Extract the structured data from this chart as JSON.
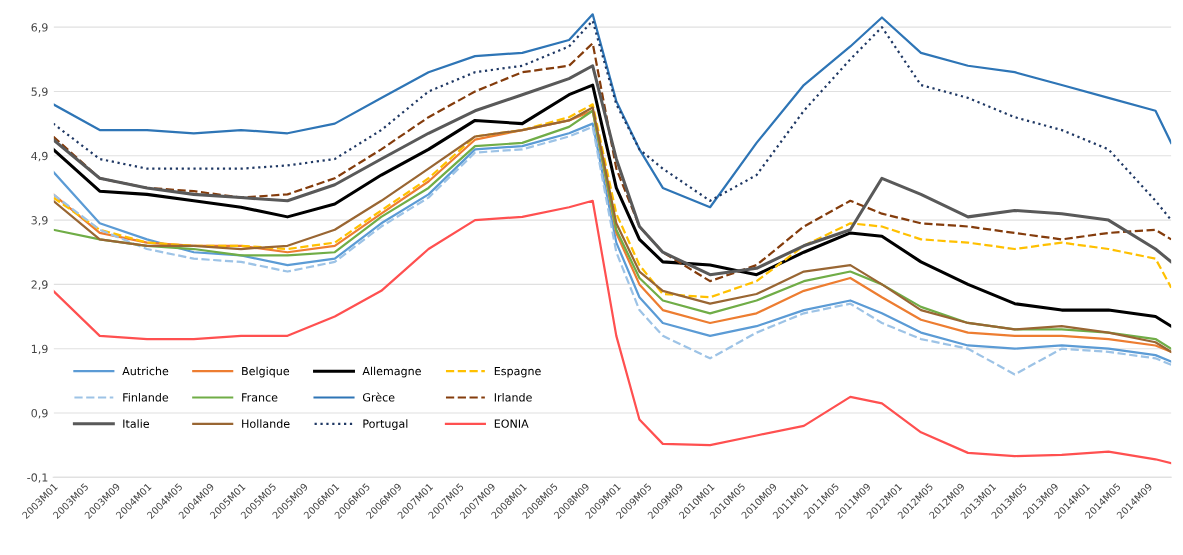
{
  "chart_data": {
    "type": "line",
    "x": [
      "2003-01",
      "2003-07",
      "2004-01",
      "2004-07",
      "2005-01",
      "2005-07",
      "2006-01",
      "2006-07",
      "2007-01",
      "2007-07",
      "2008-01",
      "2008-07",
      "2008-10",
      "2009-01",
      "2009-04",
      "2009-07",
      "2010-01",
      "2010-07",
      "2011-01",
      "2011-07",
      "2011-11",
      "2012-04",
      "2012-10",
      "2013-04",
      "2013-10",
      "2014-04",
      "2014-10",
      "2014-12"
    ],
    "series": [
      {
        "name": "Autriche",
        "color": "#5b9bd5",
        "line_style": "solid",
        "values": [
          4.65,
          3.85,
          3.6,
          3.4,
          3.35,
          3.2,
          3.3,
          3.85,
          4.3,
          5.0,
          5.05,
          5.25,
          5.4,
          3.55,
          2.7,
          2.3,
          2.1,
          2.25,
          2.5,
          2.65,
          2.45,
          2.15,
          1.95,
          1.9,
          1.95,
          1.9,
          1.8,
          1.7
        ]
      },
      {
        "name": "Belgique",
        "color": "#ed7d31",
        "line_style": "solid",
        "values": [
          4.3,
          3.7,
          3.55,
          3.5,
          3.5,
          3.4,
          3.5,
          4.0,
          4.5,
          5.15,
          5.3,
          5.45,
          5.6,
          3.7,
          2.9,
          2.5,
          2.3,
          2.45,
          2.8,
          3.0,
          2.7,
          2.35,
          2.15,
          2.1,
          2.1,
          2.05,
          1.95,
          1.85
        ]
      },
      {
        "name": "Allemagne",
        "color": "#000000",
        "line_style": "solid",
        "values": [
          5.0,
          4.35,
          4.3,
          4.2,
          4.1,
          3.95,
          4.15,
          4.6,
          5.0,
          5.45,
          5.4,
          5.85,
          6.0,
          4.4,
          3.6,
          3.25,
          3.2,
          3.05,
          3.4,
          3.7,
          3.65,
          3.25,
          2.9,
          2.6,
          2.5,
          2.5,
          2.4,
          2.25
        ]
      },
      {
        "name": "Espagne",
        "color": "#ffc000",
        "line_style": "dashed",
        "values": [
          4.25,
          3.75,
          3.55,
          3.5,
          3.5,
          3.45,
          3.55,
          4.05,
          4.55,
          5.2,
          5.3,
          5.5,
          5.7,
          4.0,
          3.2,
          2.75,
          2.7,
          2.95,
          3.5,
          3.85,
          3.8,
          3.6,
          3.55,
          3.45,
          3.55,
          3.45,
          3.3,
          2.85
        ]
      },
      {
        "name": "Finlande",
        "color": "#9dc3e6",
        "line_style": "dashed",
        "values": [
          4.3,
          3.75,
          3.45,
          3.3,
          3.25,
          3.1,
          3.25,
          3.8,
          4.25,
          4.95,
          5.0,
          5.2,
          5.35,
          3.4,
          2.5,
          2.1,
          1.75,
          2.15,
          2.45,
          2.6,
          2.3,
          2.05,
          1.9,
          1.5,
          1.9,
          1.85,
          1.75,
          1.65
        ]
      },
      {
        "name": "France",
        "color": "#70ad47",
        "line_style": "solid",
        "values": [
          3.75,
          3.6,
          3.5,
          3.45,
          3.35,
          3.35,
          3.4,
          3.95,
          4.4,
          5.05,
          5.1,
          5.35,
          5.6,
          3.75,
          3.0,
          2.65,
          2.45,
          2.65,
          2.95,
          3.1,
          2.9,
          2.55,
          2.3,
          2.2,
          2.2,
          2.15,
          2.05,
          1.9
        ]
      },
      {
        "name": "Grèce",
        "color": "#2e75b6",
        "line_style": "solid",
        "values": [
          5.7,
          5.3,
          5.3,
          5.25,
          5.3,
          5.25,
          5.4,
          5.8,
          6.2,
          6.45,
          6.5,
          6.7,
          7.1,
          5.75,
          5.0,
          4.4,
          4.1,
          5.1,
          6.0,
          6.6,
          7.05,
          6.5,
          6.3,
          6.2,
          6.0,
          5.8,
          5.6,
          5.1
        ]
      },
      {
        "name": "Irlande",
        "color": "#843c0c",
        "line_style": "dashed",
        "values": [
          5.2,
          4.55,
          4.4,
          4.35,
          4.25,
          4.3,
          4.55,
          5.0,
          5.5,
          5.9,
          6.2,
          6.3,
          6.65,
          4.7,
          3.8,
          3.4,
          2.95,
          3.2,
          3.8,
          4.2,
          4.0,
          3.85,
          3.8,
          3.7,
          3.6,
          3.7,
          3.75,
          3.6
        ]
      },
      {
        "name": "Italie",
        "color": "#595959",
        "line_style": "solid",
        "values": [
          5.15,
          4.55,
          4.4,
          4.3,
          4.25,
          4.2,
          4.45,
          4.85,
          5.25,
          5.6,
          5.85,
          6.1,
          6.3,
          4.85,
          3.8,
          3.4,
          3.05,
          3.15,
          3.5,
          3.75,
          4.55,
          4.3,
          3.95,
          4.05,
          4.0,
          3.9,
          3.45,
          3.25
        ]
      },
      {
        "name": "Hollande",
        "color": "#996633",
        "line_style": "solid",
        "values": [
          4.2,
          3.6,
          3.5,
          3.5,
          3.45,
          3.5,
          3.75,
          4.2,
          4.7,
          5.2,
          5.3,
          5.45,
          5.65,
          3.85,
          3.1,
          2.8,
          2.6,
          2.75,
          3.1,
          3.2,
          2.9,
          2.5,
          2.3,
          2.2,
          2.25,
          2.15,
          2.0,
          1.85
        ]
      },
      {
        "name": "Portugal",
        "color": "#1f3864",
        "line_style": "dotted",
        "values": [
          5.4,
          4.85,
          4.7,
          4.7,
          4.7,
          4.75,
          4.85,
          5.3,
          5.9,
          6.2,
          6.3,
          6.6,
          7.0,
          5.7,
          5.0,
          4.7,
          4.2,
          4.6,
          5.6,
          6.4,
          6.9,
          6.0,
          5.8,
          5.5,
          5.3,
          5.0,
          4.2,
          3.9
        ]
      },
      {
        "name": "EONIA",
        "color": "#ff5050",
        "line_style": "solid",
        "values": [
          2.8,
          2.1,
          2.05,
          2.05,
          2.1,
          2.1,
          2.4,
          2.8,
          3.45,
          3.9,
          3.95,
          4.1,
          4.2,
          2.1,
          0.8,
          0.42,
          0.4,
          0.55,
          0.7,
          1.15,
          1.05,
          0.6,
          0.28,
          0.23,
          0.25,
          0.3,
          0.18,
          0.12
        ]
      }
    ],
    "xlim": [
      "2003-01",
      "2014-12"
    ],
    "xticks": [
      {
        "value": "2003-01",
        "label": "2003M01"
      },
      {
        "value": "2003-05",
        "label": "2003M05"
      },
      {
        "value": "2003-09",
        "label": "2003M09"
      },
      {
        "value": "2004-01",
        "label": "2004M01"
      },
      {
        "value": "2004-05",
        "label": "2004M05"
      },
      {
        "value": "2004-09",
        "label": "2004M09"
      },
      {
        "value": "2005-01",
        "label": "2005M01"
      },
      {
        "value": "2005-05",
        "label": "2005M05"
      },
      {
        "value": "2005-09",
        "label": "2005M09"
      },
      {
        "value": "2006-01",
        "label": "2006M01"
      },
      {
        "value": "2006-05",
        "label": "2006M05"
      },
      {
        "value": "2006-09",
        "label": "2006M09"
      },
      {
        "value": "2007-01",
        "label": "2007M01"
      },
      {
        "value": "2007-05",
        "label": "2007M05"
      },
      {
        "value": "2007-09",
        "label": "2007M09"
      },
      {
        "value": "2008-01",
        "label": "2008M01"
      },
      {
        "value": "2008-05",
        "label": "2008M05"
      },
      {
        "value": "2008-09",
        "label": "2008M09"
      },
      {
        "value": "2009-01",
        "label": "2009M01"
      },
      {
        "value": "2009-05",
        "label": "2009M05"
      },
      {
        "value": "2009-09",
        "label": "2009M09"
      },
      {
        "value": "2010-01",
        "label": "2010M01"
      },
      {
        "value": "2010-05",
        "label": "2010M05"
      },
      {
        "value": "2010-09",
        "label": "2010M09"
      },
      {
        "value": "2011-01",
        "label": "2011M01"
      },
      {
        "value": "2011-05",
        "label": "2011M05"
      },
      {
        "value": "2011-09",
        "label": "2011M09"
      },
      {
        "value": "2012-01",
        "label": "2012M01"
      },
      {
        "value": "2012-05",
        "label": "2012M05"
      },
      {
        "value": "2012-09",
        "label": "2012M09"
      },
      {
        "value": "2013-01",
        "label": "2013M01"
      },
      {
        "value": "2013-05",
        "label": "2013M05"
      },
      {
        "value": "2013-09",
        "label": "2013M09"
      },
      {
        "value": "2014-01",
        "label": "2014M01"
      },
      {
        "value": "2014-05",
        "label": "2014M05"
      },
      {
        "value": "2014-09",
        "label": "2014M09"
      }
    ],
    "ylim": [
      -0.1,
      7.15
    ],
    "yticks": [
      {
        "value": -0.1,
        "label": "-0,1"
      },
      {
        "value": 0.9,
        "label": "0,9"
      },
      {
        "value": 1.9,
        "label": "1,9"
      },
      {
        "value": 2.9,
        "label": "2,9"
      },
      {
        "value": 3.9,
        "label": "3,9"
      },
      {
        "value": 4.9,
        "label": "4,9"
      },
      {
        "value": 5.9,
        "label": "5,9"
      },
      {
        "value": 6.9,
        "label": "6,9"
      }
    ],
    "grid": "y",
    "legend": "bottom left",
    "marker": "none"
  }
}
